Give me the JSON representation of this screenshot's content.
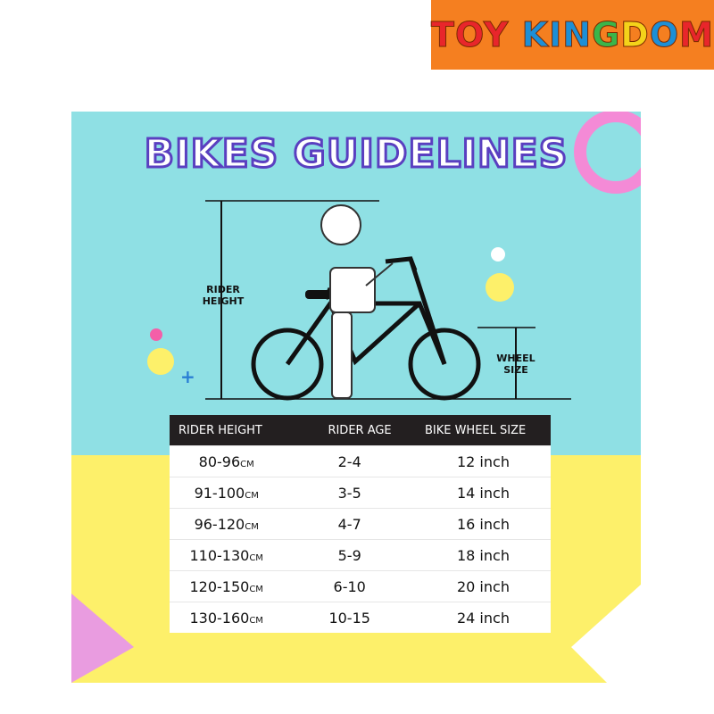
{
  "brand": {
    "logo_text": "TOY KINGDOM",
    "colors": {
      "background": "#f57f20"
    }
  },
  "infographic": {
    "title": "BIKES GUIDELINES",
    "rider_height_label": "RIDER HEIGHT",
    "wheel_size_label": "WHEEL SIZE",
    "colors": {
      "sky": "#8fe0e4",
      "ground": "#fdf06a",
      "title_outline": "#5a3fc0",
      "table_header": "#231f20"
    }
  },
  "table": {
    "headers": [
      "RIDER HEIGHT",
      "RIDER AGE",
      "BIKE WHEEL SIZE"
    ],
    "unit": "CM",
    "rows": [
      {
        "height": "80-96",
        "age": "2-4",
        "wheel": "12 inch"
      },
      {
        "height": "91-100",
        "age": "3-5",
        "wheel": "14 inch"
      },
      {
        "height": "96-120",
        "age": "4-7",
        "wheel": "16 inch"
      },
      {
        "height": "110-130",
        "age": "5-9",
        "wheel": "18 inch"
      },
      {
        "height": "120-150",
        "age": "6-10",
        "wheel": "20 inch"
      },
      {
        "height": "130-160",
        "age": "10-15",
        "wheel": "24 inch"
      }
    ]
  }
}
